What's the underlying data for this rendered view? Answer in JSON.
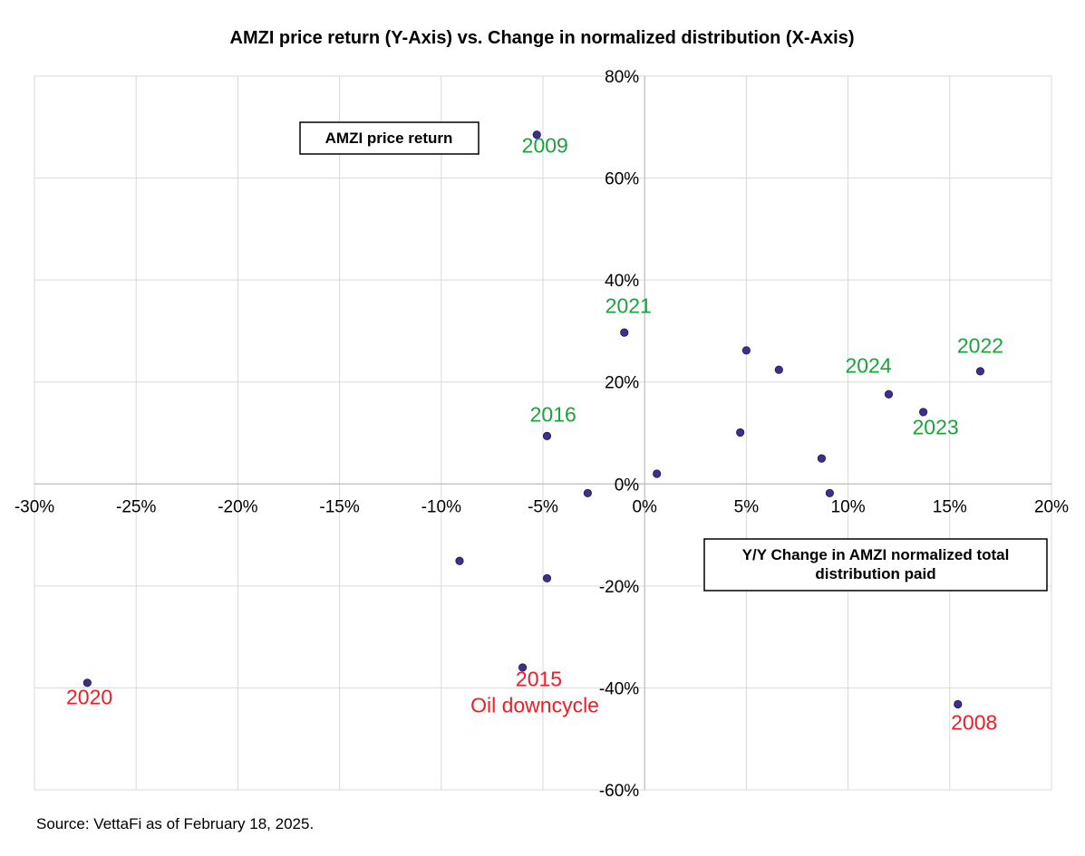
{
  "chart_data": {
    "type": "scatter",
    "title": "AMZI price return (Y-Axis) vs. Change in normalized distribution (X-Axis)",
    "xlim": [
      -0.3,
      0.2
    ],
    "ylim": [
      -0.6,
      0.8
    ],
    "x_ticks": [
      -0.3,
      -0.25,
      -0.2,
      -0.15,
      -0.1,
      -0.05,
      0,
      0.05,
      0.1,
      0.15,
      0.2
    ],
    "y_ticks": [
      -0.6,
      -0.4,
      -0.2,
      0,
      0.2,
      0.4,
      0.6,
      0.8
    ],
    "x_tick_labels": [
      "-30%",
      "-25%",
      "-20%",
      "-15%",
      "-10%",
      "-5%",
      "0%",
      "5%",
      "10%",
      "15%",
      "20%"
    ],
    "y_tick_labels": [
      "-60%",
      "-40%",
      "-20%",
      "0%",
      "20%",
      "40%",
      "60%",
      "80%"
    ],
    "grid": true,
    "marker_color": "#3b2f8f",
    "points": [
      {
        "x": -0.053,
        "y": 0.685
      },
      {
        "x": -0.01,
        "y": 0.297
      },
      {
        "x": 0.05,
        "y": 0.262
      },
      {
        "x": 0.066,
        "y": 0.224
      },
      {
        "x": 0.165,
        "y": 0.221
      },
      {
        "x": 0.12,
        "y": 0.176
      },
      {
        "x": 0.137,
        "y": 0.141
      },
      {
        "x": 0.047,
        "y": 0.101
      },
      {
        "x": -0.048,
        "y": 0.094
      },
      {
        "x": 0.087,
        "y": 0.05
      },
      {
        "x": 0.006,
        "y": 0.02
      },
      {
        "x": -0.028,
        "y": -0.018
      },
      {
        "x": 0.091,
        "y": -0.018
      },
      {
        "x": -0.091,
        "y": -0.151
      },
      {
        "x": -0.048,
        "y": -0.185
      },
      {
        "x": -0.06,
        "y": -0.36
      },
      {
        "x": -0.274,
        "y": -0.39
      },
      {
        "x": 0.154,
        "y": -0.432
      }
    ],
    "annotations": [
      {
        "text": "2009",
        "x": -0.049,
        "y": 0.65,
        "color": "#1aa33c"
      },
      {
        "text": "2021",
        "x": -0.008,
        "y": 0.335,
        "color": "#1aa33c"
      },
      {
        "text": "2022",
        "x": 0.165,
        "y": 0.257,
        "color": "#1aa33c"
      },
      {
        "text": "2024",
        "x": 0.11,
        "y": 0.218,
        "color": "#1aa33c"
      },
      {
        "text": "2023",
        "x": 0.143,
        "y": 0.097,
        "color": "#1aa33c"
      },
      {
        "text": "2016",
        "x": -0.045,
        "y": 0.122,
        "color": "#1aa33c"
      },
      {
        "text": "2020",
        "x": -0.273,
        "y": -0.432,
        "color": "#ee1c24"
      },
      {
        "text": "2015",
        "x": -0.052,
        "y": -0.397,
        "color": "#ee1c24"
      },
      {
        "text": "Oil downcycle",
        "x": -0.054,
        "y": -0.448,
        "color": "#ee1c24"
      },
      {
        "text": "2008",
        "x": 0.162,
        "y": -0.482,
        "color": "#ee1c24"
      }
    ],
    "y_axis_box": "AMZI price return",
    "x_axis_box": [
      "Y/Y Change in AMZI normalized total",
      "distribution paid"
    ]
  },
  "source": "Source: VettaFi as of February 18, 2025."
}
